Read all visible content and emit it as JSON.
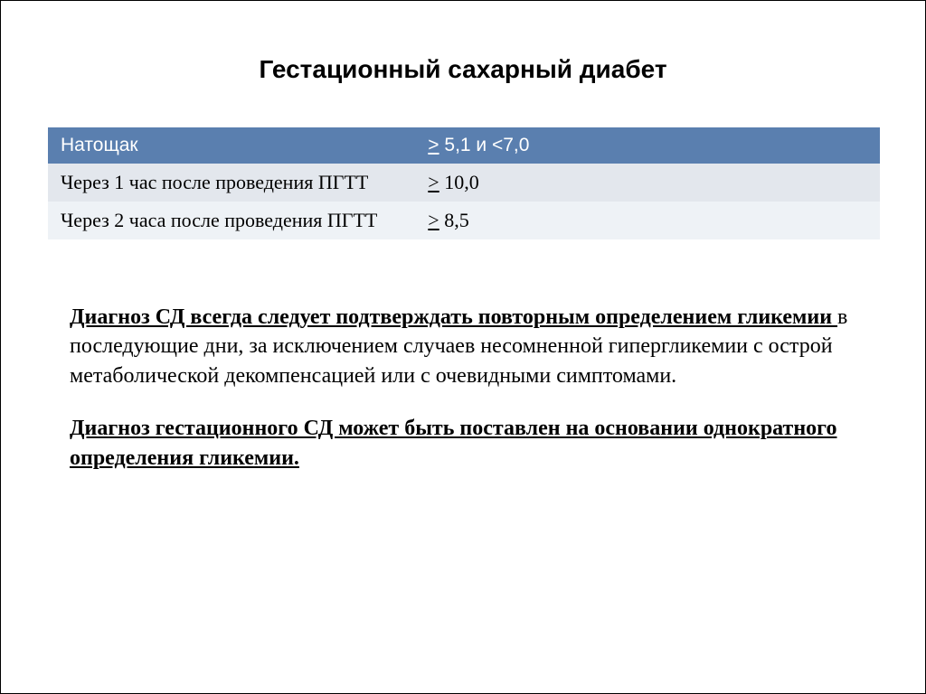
{
  "title": "Гестационный сахарный диабет",
  "table": {
    "header_bg": "#5a7faf",
    "header_fg": "#ffffff",
    "alt1_bg": "#e3e7ed",
    "alt2_bg": "#eef2f6",
    "rows": [
      {
        "label": "Натощак",
        "value_prefix": ">",
        "value_rest": "  5,1 и   <7,0"
      },
      {
        "label": "Через 1 час после проведения ПГТТ",
        "value_prefix": ">",
        "value_rest": "  10,0"
      },
      {
        "label": "Через 2 часа после проведения ПГТТ",
        "value_prefix": ">",
        "value_rest": "  8,5"
      }
    ]
  },
  "para1": {
    "underlined_bold": "Диагноз СД всегда следует подтверждать повторным определением гликемии ",
    "rest": "в последующие дни, за исключением случаев несомненной гипергликемии с острой метаболической  декомпенсацией или с очевидными симптомами."
  },
  "para2": {
    "underlined_bold": "Диагноз гестационного СД может быть поставлен на основании однократного определения гликемии.",
    "rest": ""
  }
}
